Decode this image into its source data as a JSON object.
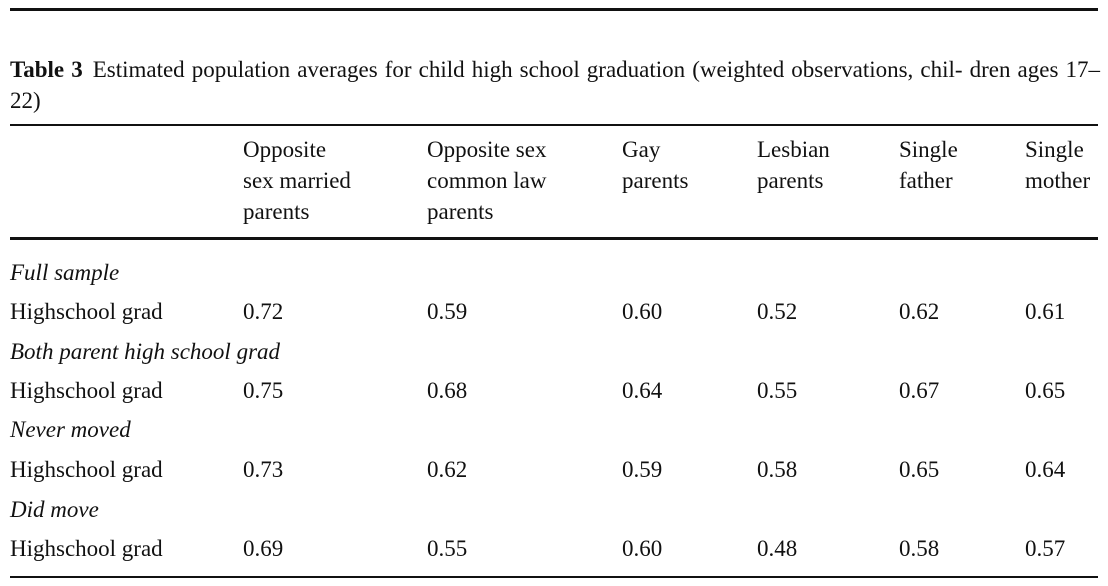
{
  "table": {
    "label": "Table 3",
    "caption_text": "Estimated population averages for child high school graduation (weighted observations, chil- dren ages 17–22)",
    "columns": [
      "Opposite\nsex married\nparents",
      "Opposite sex\ncommon law\nparents",
      "Gay\nparents",
      "Lesbian\nparents",
      "Single\nfather",
      "Single\nmother"
    ],
    "sections": [
      {
        "title": "Full sample",
        "rows": [
          {
            "label": "Highschool grad",
            "values": [
              "0.72",
              "0.59",
              "0.60",
              "0.52",
              "0.62",
              "0.61"
            ]
          }
        ]
      },
      {
        "title": "Both parent high school grad",
        "rows": [
          {
            "label": "Highschool grad",
            "values": [
              "0.75",
              "0.68",
              "0.64",
              "0.55",
              "0.67",
              "0.65"
            ]
          }
        ]
      },
      {
        "title": "Never moved",
        "rows": [
          {
            "label": "Highschool grad",
            "values": [
              "0.73",
              "0.62",
              "0.59",
              "0.58",
              "0.65",
              "0.64"
            ]
          }
        ]
      },
      {
        "title": "Did move",
        "rows": [
          {
            "label": "Highschool grad",
            "values": [
              "0.69",
              "0.55",
              "0.60",
              "0.48",
              "0.58",
              "0.57"
            ]
          }
        ]
      }
    ]
  }
}
